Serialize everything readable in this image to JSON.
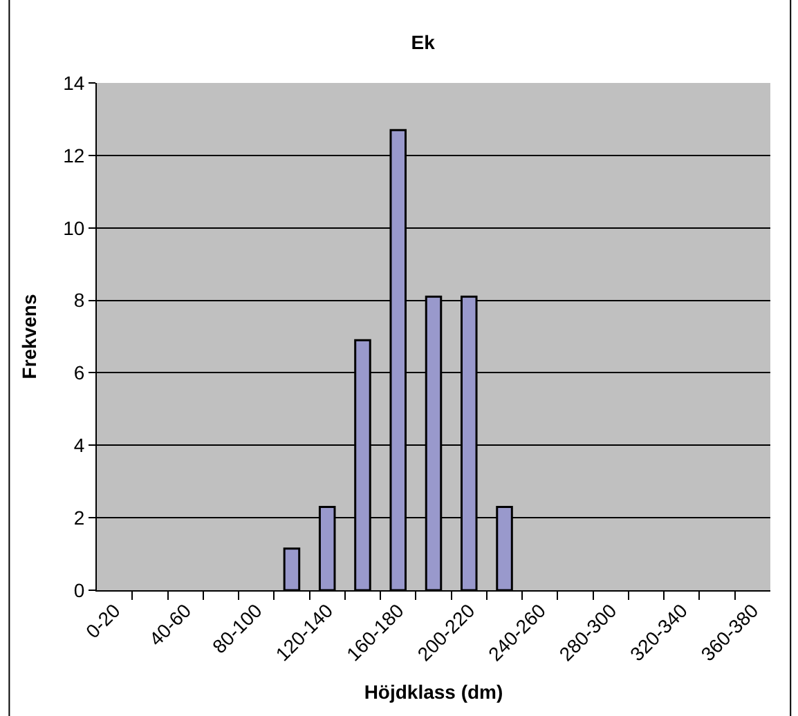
{
  "chart_data": {
    "type": "bar",
    "title": "Ek",
    "xlabel": "Höjdklass (dm)",
    "ylabel": "Frekvens",
    "categories": [
      "0-20",
      null,
      "40-60",
      null,
      "80-100",
      null,
      "120-140",
      null,
      "160-180",
      null,
      "200-220",
      null,
      "240-260",
      null,
      "280-300",
      null,
      "320-340",
      null,
      "360-380"
    ],
    "values": [
      0,
      0,
      0,
      0,
      0,
      1.15,
      2.3,
      6.9,
      12.7,
      8.1,
      8.1,
      2.3,
      0,
      0,
      0,
      0,
      0,
      0,
      0
    ],
    "color": "#9999cc",
    "ylim": [
      0,
      14
    ],
    "yticks": [
      0,
      2,
      4,
      6,
      8,
      10,
      12,
      14
    ],
    "grid": "y"
  }
}
